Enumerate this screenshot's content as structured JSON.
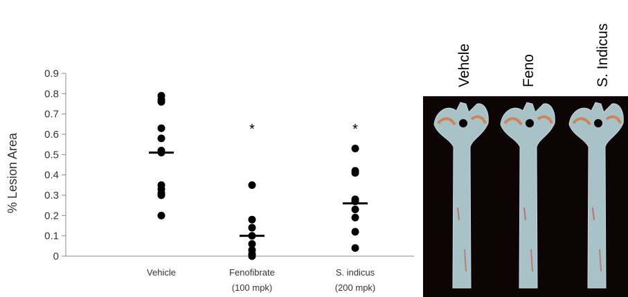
{
  "chart_data": {
    "type": "scatter",
    "title": "",
    "xlabel": "",
    "ylabel": "% Lesion Area",
    "ylim": [
      0,
      0.9
    ],
    "yticks": [
      "0",
      "0.1",
      "0.2",
      "0.3",
      "0.4",
      "0.5",
      "0.6",
      "0.7",
      "0.8",
      "0.9"
    ],
    "grid": false,
    "categories": [
      {
        "line1": "Vehicle",
        "line2": ""
      },
      {
        "line1": "Fenofibrate",
        "line2": "(100 mpk)"
      },
      {
        "line1": "S. indicus",
        "line2": "(200 mpk)"
      }
    ],
    "groups": [
      {
        "points": [
          0.79,
          0.77,
          0.76,
          0.63,
          0.58,
          0.52,
          0.51,
          0.35,
          0.33,
          0.31,
          0.3,
          0.2
        ],
        "median": 0.51,
        "annotation": ""
      },
      {
        "points": [
          0.35,
          0.18,
          0.14,
          0.1,
          0.06,
          0.03,
          0.01,
          0.0
        ],
        "median": 0.1,
        "annotation": "*"
      },
      {
        "points": [
          0.53,
          0.42,
          0.41,
          0.28,
          0.27,
          0.23,
          0.19,
          0.12,
          0.04
        ],
        "median": 0.26,
        "annotation": "*"
      }
    ]
  },
  "photo": {
    "labels": [
      "Vehcle",
      "Feno",
      "S. Indicus"
    ],
    "background": "#0d0505",
    "tissue_color": "#a9c2c8",
    "lesion_color": "#d27a44"
  }
}
